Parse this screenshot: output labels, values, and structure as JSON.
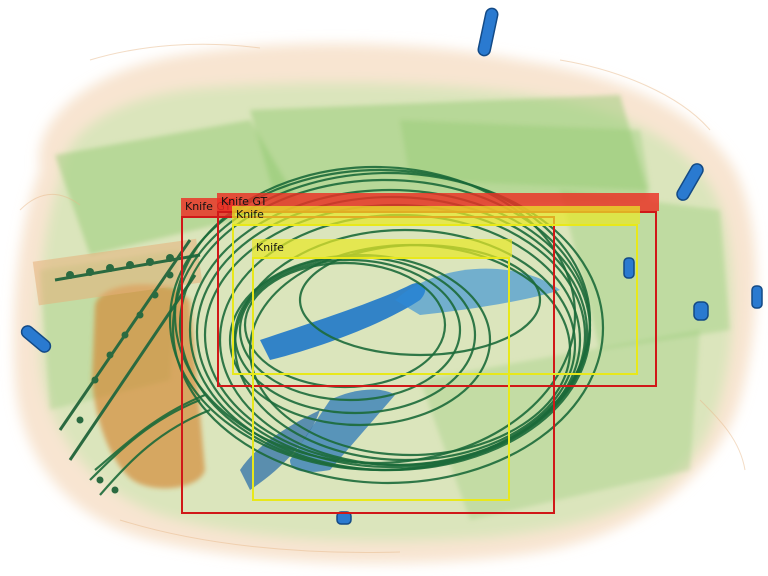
{
  "image": {
    "description_free": true,
    "palette": {
      "organic": "#e8a86a",
      "inorganic": "#7cc06a",
      "dense": "#1f6fc0",
      "coil": "#1c6a3a",
      "gt_box": "#d01818",
      "pred_box": "#e8e81a",
      "gt_label_bg": "#ec3024",
      "pred_label_bg": "#e8e828"
    }
  },
  "detections": [
    {
      "id": "gt-1",
      "label": "Knife GT",
      "kind": "ground-truth"
    },
    {
      "id": "gt-2",
      "label": "Knife GT",
      "kind": "ground-truth"
    },
    {
      "id": "pred-1",
      "label": "Knife",
      "kind": "prediction"
    },
    {
      "id": "pred-2",
      "label": "Knife",
      "kind": "prediction"
    }
  ]
}
